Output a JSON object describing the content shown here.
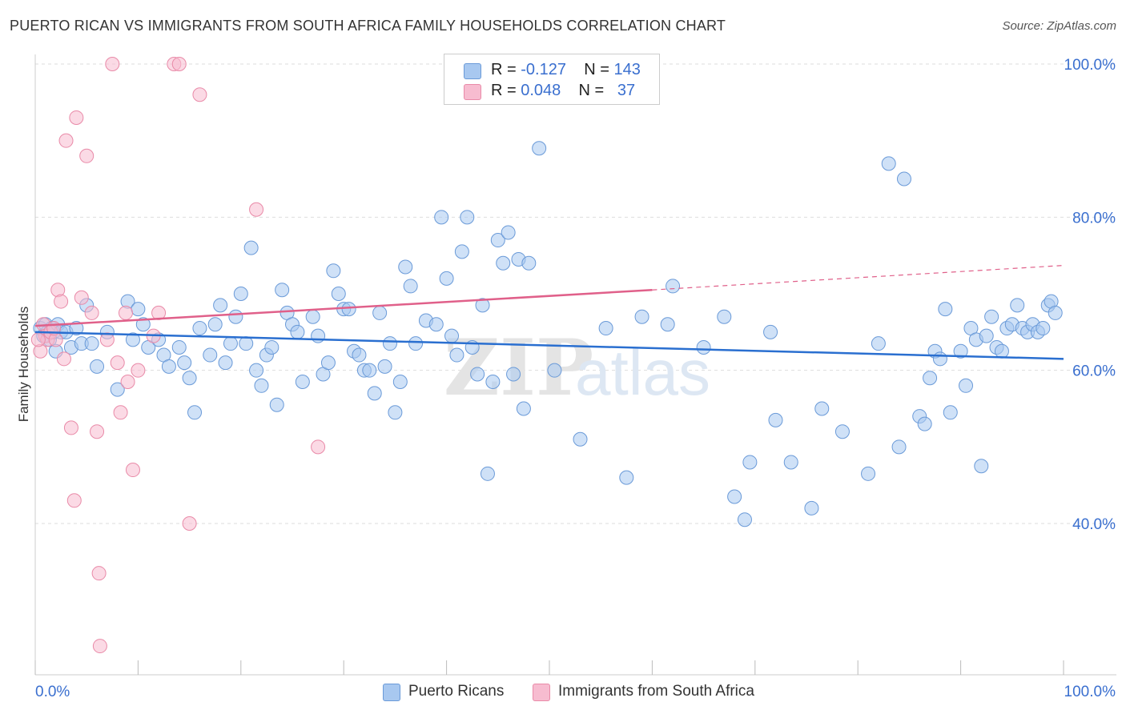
{
  "title": "PUERTO RICAN VS IMMIGRANTS FROM SOUTH AFRICA FAMILY HOUSEHOLDS CORRELATION CHART",
  "source": "Source: ZipAtlas.com",
  "watermark": {
    "zip": "ZIP",
    "atlas": "atlas"
  },
  "colors": {
    "blue_fill": "#a8c8f0",
    "blue_stroke": "#6a9ad8",
    "blue_line": "#2a6fd0",
    "pink_fill": "#f7bcd0",
    "pink_stroke": "#e98aa8",
    "pink_line": "#e0608a",
    "axis_text": "#3a6fcf",
    "grid": "#dddddd"
  },
  "legend": {
    "rows": [
      {
        "r_label": "R =",
        "r_value": "-0.127",
        "n_label": "N =",
        "n_value": "143"
      },
      {
        "r_label": "R =",
        "r_value": "0.048",
        "n_label": "N =",
        "n_value": "37"
      }
    ]
  },
  "bottom_legend": {
    "puerto_ricans": "Puerto Ricans",
    "south_africa": "Immigrants from South Africa"
  },
  "chart_data": {
    "type": "scatter",
    "title": "PUERTO RICAN VS IMMIGRANTS FROM SOUTH AFRICA FAMILY HOUSEHOLDS CORRELATION CHART",
    "xlabel": "",
    "ylabel": "Family Households",
    "xlim": [
      0,
      100
    ],
    "ylim": [
      20,
      104
    ],
    "x_tick_labels": [
      "0.0%",
      "100.0%"
    ],
    "y_ticks": [
      40,
      60,
      80,
      100
    ],
    "y_tick_labels": [
      "40.0%",
      "60.0%",
      "80.0%",
      "100.0%"
    ],
    "grid": true,
    "legend_position": "top-center",
    "series": [
      {
        "name": "Puerto Ricans",
        "color": "#a8c8f0",
        "r": -0.127,
        "n": 143,
        "trend": {
          "x": [
            0,
            100
          ],
          "y": [
            65.0,
            61.5
          ]
        },
        "points": [
          [
            0.5,
            65.5
          ],
          [
            0.8,
            64.5
          ],
          [
            1.0,
            66
          ],
          [
            1.2,
            65
          ],
          [
            1.4,
            64
          ],
          [
            1.6,
            65.5
          ],
          [
            1.8,
            65
          ],
          [
            2.0,
            62.5
          ],
          [
            2.2,
            66
          ],
          [
            2.5,
            65
          ],
          [
            3.0,
            65
          ],
          [
            3.5,
            63
          ],
          [
            4.0,
            65.5
          ],
          [
            4.5,
            63.5
          ],
          [
            5.0,
            68.5
          ],
          [
            5.5,
            63.5
          ],
          [
            6.0,
            60.5
          ],
          [
            7.0,
            65
          ],
          [
            8.0,
            57.5
          ],
          [
            9.0,
            69
          ],
          [
            9.5,
            64
          ],
          [
            10.0,
            68
          ],
          [
            10.5,
            66
          ],
          [
            11.0,
            63
          ],
          [
            12.0,
            64
          ],
          [
            12.5,
            62
          ],
          [
            13.0,
            60.5
          ],
          [
            14.0,
            63
          ],
          [
            14.5,
            61
          ],
          [
            15.0,
            59
          ],
          [
            15.5,
            54.5
          ],
          [
            16.0,
            65.5
          ],
          [
            17.0,
            62
          ],
          [
            17.5,
            66
          ],
          [
            18.0,
            68.5
          ],
          [
            18.5,
            61
          ],
          [
            19.0,
            63.5
          ],
          [
            19.5,
            67
          ],
          [
            20.0,
            70
          ],
          [
            20.5,
            63.5
          ],
          [
            21.0,
            76
          ],
          [
            21.5,
            60
          ],
          [
            22.0,
            58
          ],
          [
            22.5,
            62
          ],
          [
            23.0,
            63
          ],
          [
            23.5,
            55.5
          ],
          [
            24.0,
            70.5
          ],
          [
            24.5,
            67.5
          ],
          [
            25.0,
            66
          ],
          [
            25.5,
            65
          ],
          [
            26.0,
            58.5
          ],
          [
            27.0,
            67
          ],
          [
            27.5,
            64.5
          ],
          [
            28.0,
            59.5
          ],
          [
            28.5,
            61
          ],
          [
            29.0,
            73
          ],
          [
            29.5,
            70
          ],
          [
            30.0,
            68
          ],
          [
            30.5,
            68
          ],
          [
            31.0,
            62.5
          ],
          [
            31.5,
            62
          ],
          [
            32.0,
            60
          ],
          [
            32.5,
            60
          ],
          [
            33.0,
            57
          ],
          [
            33.5,
            67.5
          ],
          [
            34.0,
            60.5
          ],
          [
            34.5,
            63.5
          ],
          [
            35.0,
            54.5
          ],
          [
            35.5,
            58.5
          ],
          [
            36.0,
            73.5
          ],
          [
            36.5,
            71
          ],
          [
            37.0,
            63.5
          ],
          [
            38.0,
            66.5
          ],
          [
            39.0,
            66
          ],
          [
            39.5,
            80
          ],
          [
            40.0,
            72
          ],
          [
            40.5,
            64.5
          ],
          [
            41.0,
            62
          ],
          [
            41.5,
            75.5
          ],
          [
            42.0,
            80
          ],
          [
            42.5,
            63
          ],
          [
            43.0,
            59.5
          ],
          [
            43.5,
            68.5
          ],
          [
            44.0,
            46.5
          ],
          [
            44.5,
            58.5
          ],
          [
            45.0,
            77
          ],
          [
            45.5,
            74
          ],
          [
            46.0,
            78
          ],
          [
            46.5,
            59.5
          ],
          [
            47.0,
            74.5
          ],
          [
            47.5,
            55
          ],
          [
            48.0,
            74
          ],
          [
            49.0,
            89
          ],
          [
            50.5,
            60
          ],
          [
            53.0,
            51
          ],
          [
            55.5,
            65.5
          ],
          [
            57.5,
            46
          ],
          [
            59.0,
            67
          ],
          [
            62.0,
            71
          ],
          [
            65.0,
            63
          ],
          [
            67.0,
            67
          ],
          [
            68.0,
            43.5
          ],
          [
            69.0,
            40.5
          ],
          [
            69.5,
            48
          ],
          [
            71.5,
            65
          ],
          [
            72.0,
            53.5
          ],
          [
            73.5,
            48
          ],
          [
            75.5,
            42
          ],
          [
            76.5,
            55
          ],
          [
            78.5,
            52
          ],
          [
            81.0,
            46.5
          ],
          [
            82.0,
            63.5
          ],
          [
            83.0,
            87
          ],
          [
            84.0,
            50
          ],
          [
            84.5,
            85
          ],
          [
            86.0,
            54
          ],
          [
            86.5,
            53
          ],
          [
            87.0,
            59
          ],
          [
            87.5,
            62.5
          ],
          [
            88.0,
            61.5
          ],
          [
            88.5,
            68
          ],
          [
            89.0,
            54.5
          ],
          [
            90.0,
            62.5
          ],
          [
            90.5,
            58
          ],
          [
            91.0,
            65.5
          ],
          [
            91.5,
            64
          ],
          [
            92.0,
            47.5
          ],
          [
            92.5,
            64.5
          ],
          [
            93.0,
            67
          ],
          [
            93.5,
            63
          ],
          [
            94.0,
            62.5
          ],
          [
            94.5,
            65.5
          ],
          [
            95.0,
            66
          ],
          [
            95.5,
            68.5
          ],
          [
            96.0,
            65.5
          ],
          [
            96.5,
            65
          ],
          [
            97.0,
            66
          ],
          [
            97.5,
            65
          ],
          [
            98.0,
            65.5
          ],
          [
            98.5,
            68.5
          ],
          [
            98.8,
            69
          ],
          [
            99.2,
            67.5
          ],
          [
            61.5,
            66
          ]
        ]
      },
      {
        "name": "Immigrants from South Africa",
        "color": "#f7bcd0",
        "r": 0.048,
        "n": 37,
        "trend": {
          "x": [
            0,
            60
          ],
          "y": [
            65.8,
            70.5
          ]
        },
        "trend_dashed": {
          "x": [
            60,
            100
          ],
          "y": [
            70.5,
            73.7
          ]
        },
        "points": [
          [
            0.5,
            62.5
          ],
          [
            0.8,
            66
          ],
          [
            1.0,
            64.5
          ],
          [
            1.2,
            64
          ],
          [
            1.5,
            65
          ],
          [
            2.0,
            64
          ],
          [
            2.2,
            70.5
          ],
          [
            2.5,
            69
          ],
          [
            2.8,
            61.5
          ],
          [
            3.0,
            90
          ],
          [
            3.5,
            52.5
          ],
          [
            3.8,
            43
          ],
          [
            4.0,
            93
          ],
          [
            4.5,
            69.5
          ],
          [
            5.0,
            88
          ],
          [
            5.5,
            67.5
          ],
          [
            6.0,
            52
          ],
          [
            6.2,
            33.5
          ],
          [
            6.3,
            24
          ],
          [
            7.0,
            64
          ],
          [
            7.5,
            100
          ],
          [
            8.0,
            61
          ],
          [
            8.3,
            54.5
          ],
          [
            8.8,
            67.5
          ],
          [
            9.0,
            58.5
          ],
          [
            9.5,
            47
          ],
          [
            10.0,
            60
          ],
          [
            11.5,
            64.5
          ],
          [
            12.0,
            67.5
          ],
          [
            13.5,
            100
          ],
          [
            14.0,
            100
          ],
          [
            15.0,
            40
          ],
          [
            16.0,
            96
          ],
          [
            21.5,
            81
          ],
          [
            27.5,
            50
          ],
          [
            1.8,
            65.5
          ],
          [
            0.3,
            64
          ]
        ]
      }
    ]
  }
}
